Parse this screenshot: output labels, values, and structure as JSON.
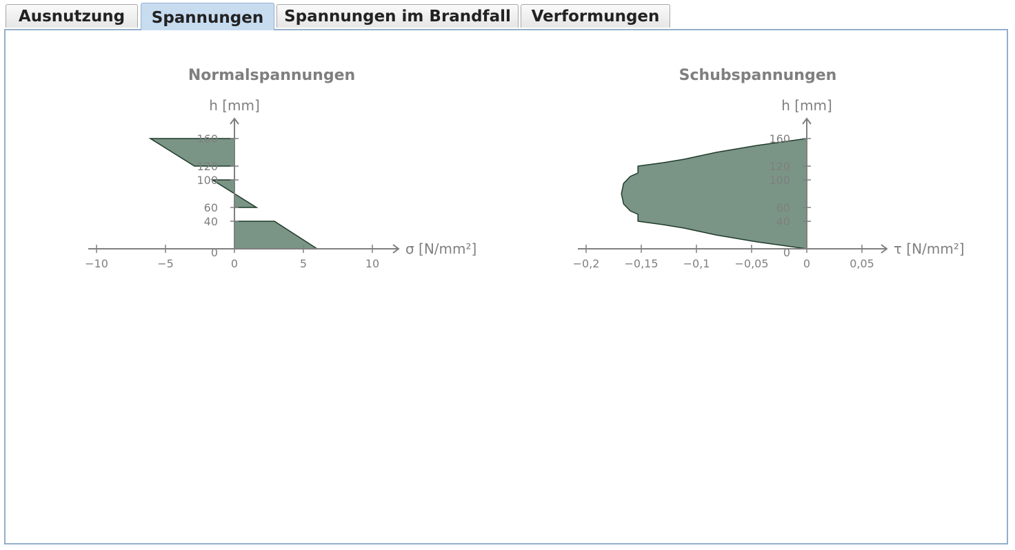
{
  "tabs": [
    {
      "label": "Ausnutzung",
      "active": false
    },
    {
      "label": "Spannungen",
      "active": true
    },
    {
      "label": "Spannungen im Brandfall",
      "active": false
    },
    {
      "label": "Verformungen",
      "active": false
    }
  ],
  "colors": {
    "fill": "#7a9586",
    "stroke": "#1f3a2a",
    "axis": "#7f7f7f",
    "tab_active": "#c8dcf0"
  },
  "chart_data": [
    {
      "type": "area",
      "title": "Normalspannungen",
      "xlabel": "σ [N/mm²]",
      "ylabel": "h [mm]",
      "x_ticks": [
        -10,
        -5,
        0,
        5,
        10
      ],
      "x_tick_labels": [
        "−10",
        "−5",
        "0",
        "5",
        "10"
      ],
      "y_ticks": [
        0,
        40,
        60,
        100,
        120,
        160
      ],
      "y_tick_labels": [
        "0",
        "40",
        "60",
        "100",
        "120",
        "160"
      ],
      "xlim": [
        -10,
        10
      ],
      "ylim": [
        0,
        160
      ],
      "regions": [
        {
          "points": [
            [
              0,
              0
            ],
            [
              6.0,
              0
            ],
            [
              2.9,
              40
            ],
            [
              0,
              40
            ]
          ]
        },
        {
          "points": [
            [
              0,
              60
            ],
            [
              1.6,
              60
            ],
            [
              0,
              80
            ]
          ]
        },
        {
          "points": [
            [
              0,
              80
            ],
            [
              -1.6,
              100
            ],
            [
              0,
              100
            ]
          ]
        },
        {
          "points": [
            [
              0,
              120
            ],
            [
              -2.9,
              120
            ],
            [
              -6.1,
              160
            ],
            [
              0,
              160
            ]
          ]
        }
      ]
    },
    {
      "type": "area",
      "title": "Schubspannungen",
      "xlabel": "τ [N/mm²]",
      "ylabel": "h [mm]",
      "x_ticks": [
        -0.2,
        -0.15,
        -0.1,
        -0.05,
        0,
        0.05
      ],
      "x_tick_labels": [
        "−0,2",
        "−0,15",
        "−0,1",
        "−0,05",
        "0",
        "0,05"
      ],
      "y_ticks": [
        0,
        40,
        60,
        100,
        120,
        160
      ],
      "y_tick_labels": [
        "0",
        "40",
        "60",
        "100",
        "120",
        "160"
      ],
      "xlim": [
        -0.2,
        0.05
      ],
      "ylim": [
        0,
        160
      ],
      "profile": [
        [
          0,
          0
        ],
        [
          -0.045,
          10
        ],
        [
          -0.082,
          20
        ],
        [
          -0.111,
          30
        ],
        [
          -0.13,
          35
        ],
        [
          -0.153,
          40
        ],
        [
          -0.153,
          50
        ],
        [
          -0.16,
          55
        ],
        [
          -0.166,
          65
        ],
        [
          -0.168,
          80
        ],
        [
          -0.166,
          95
        ],
        [
          -0.16,
          105
        ],
        [
          -0.153,
          110
        ],
        [
          -0.153,
          120
        ],
        [
          -0.13,
          125
        ],
        [
          -0.111,
          130
        ],
        [
          -0.082,
          140
        ],
        [
          -0.045,
          150
        ],
        [
          0,
          160
        ]
      ]
    }
  ]
}
